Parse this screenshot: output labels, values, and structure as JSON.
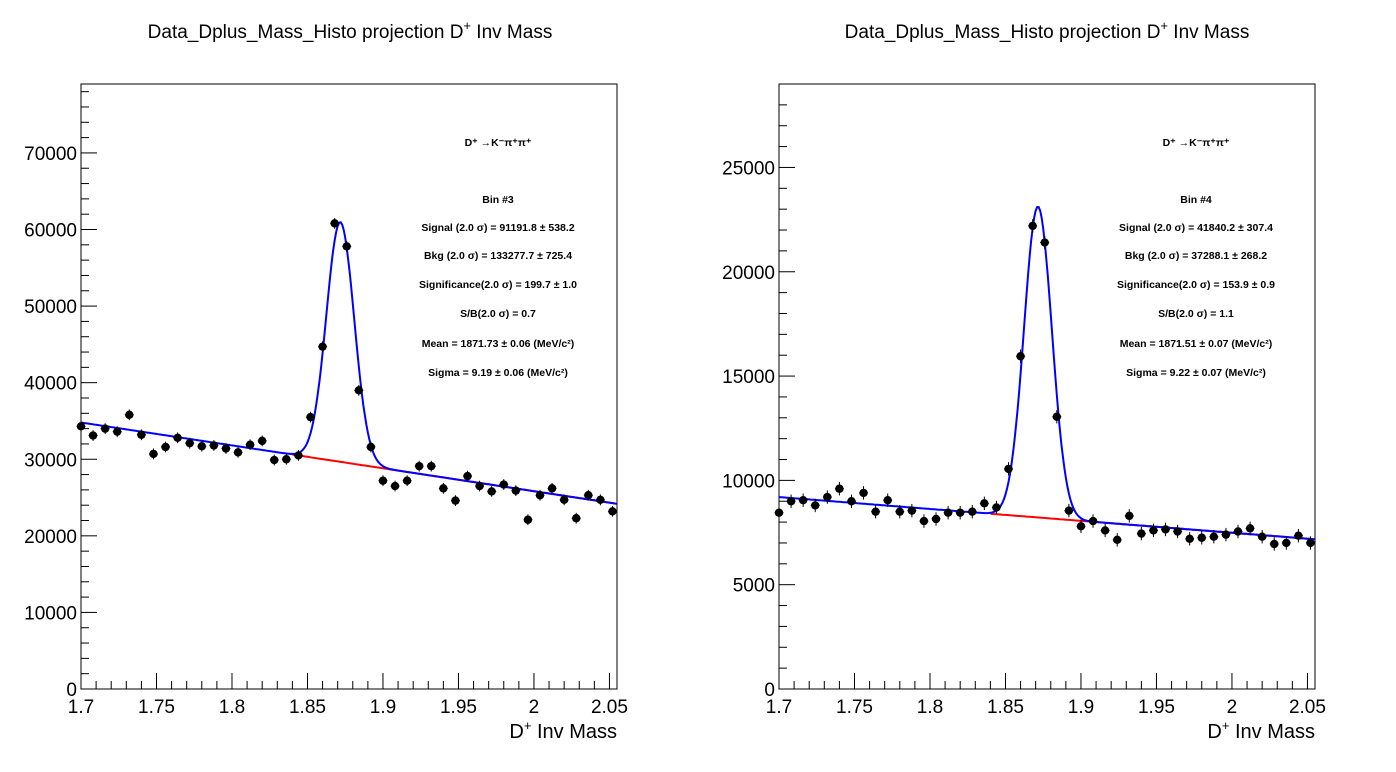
{
  "chart_data": [
    {
      "type": "scatter",
      "title_main": "Data_Dplus_Mass_Histo projection",
      "title_var": "D",
      "title_sup": "+",
      "title_rest": " Inv Mass",
      "xlabel_var": "D",
      "xlabel_sup": "+",
      "xlabel_rest": " Inv Mass",
      "ylabel": "",
      "xlim": [
        1.7,
        2.055
      ],
      "ylim": [
        0,
        79000
      ],
      "xticks": [
        1.7,
        1.75,
        1.8,
        1.85,
        1.9,
        1.95,
        2.0,
        2.05
      ],
      "xtick_labels": [
        "1.7",
        "1.75",
        "1.8",
        "1.85",
        "1.9",
        "1.95",
        "2",
        "2.05"
      ],
      "yticks": [
        0,
        10000,
        20000,
        30000,
        40000,
        50000,
        60000,
        70000
      ],
      "ytick_labels": [
        "0",
        "10000",
        "20000",
        "30000",
        "40000",
        "50000",
        "60000",
        "70000"
      ],
      "decay_label": "D⁺ →K⁻π⁺π⁺",
      "info_lines": [
        "Bin #3",
        "Signal (2.0 σ) =  91191.8 ± 538.2",
        "Bkg (2.0  σ) =  133277.7 ± 725.4",
        "Significance(2.0 σ) =  199.7 ± 1.0",
        "S/B(2.0  σ) =  0.7",
        "Mean = 1871.73 ± 0.06 (MeV/c²)",
        "Sigma = 9.19 ± 0.06 (MeV/c²)"
      ],
      "series": [
        {
          "kind": "data",
          "x": [
            1.7,
            1.708,
            1.716,
            1.724,
            1.732,
            1.74,
            1.748,
            1.756,
            1.764,
            1.772,
            1.78,
            1.788,
            1.796,
            1.804,
            1.812,
            1.82,
            1.828,
            1.836,
            1.844,
            1.852,
            1.86,
            1.868,
            1.876,
            1.884,
            1.892,
            1.9,
            1.908,
            1.916,
            1.924,
            1.932,
            1.94,
            1.948,
            1.956,
            1.964,
            1.972,
            1.98,
            1.988,
            1.996,
            2.004,
            2.012,
            2.02,
            2.028,
            2.036,
            2.044,
            2.052
          ],
          "y": [
            34300,
            33100,
            34000,
            33600,
            35800,
            33200,
            30700,
            31600,
            32800,
            32100,
            31700,
            31800,
            31400,
            30900,
            31900,
            32400,
            29900,
            30000,
            30500,
            35500,
            44700,
            60800,
            57800,
            39000,
            31600,
            27200,
            26500,
            27200,
            29100,
            29100,
            26200,
            24600,
            27800,
            26500,
            25800,
            26700,
            25900,
            22100,
            25300,
            26200,
            24700,
            22300,
            25300,
            24700,
            23200
          ],
          "yerr": 180
        },
        {
          "kind": "background",
          "color": "#ff0000",
          "x_range": [
            1.84,
            2.055
          ],
          "a": 34800,
          "b": 1871.7
        },
        {
          "kind": "total_fit",
          "color": "#0000ff",
          "x_range": [
            1.7,
            2.055
          ],
          "amp": 31300,
          "mean": 1.87173,
          "sigma": 0.00919
        }
      ]
    },
    {
      "type": "scatter",
      "title_main": "Data_Dplus_Mass_Histo projection",
      "title_var": "D",
      "title_sup": "+",
      "title_rest": " Inv Mass",
      "xlabel_var": "D",
      "xlabel_sup": "+",
      "xlabel_rest": " Inv Mass",
      "ylabel": "",
      "xlim": [
        1.7,
        2.055
      ],
      "ylim": [
        0,
        29000
      ],
      "xticks": [
        1.7,
        1.75,
        1.8,
        1.85,
        1.9,
        1.95,
        2.0,
        2.05
      ],
      "xtick_labels": [
        "1.7",
        "1.75",
        "1.8",
        "1.85",
        "1.9",
        "1.95",
        "2",
        "2.05"
      ],
      "yticks": [
        0,
        5000,
        10000,
        15000,
        20000,
        25000
      ],
      "ytick_labels": [
        "0",
        "5000",
        "10000",
        "15000",
        "20000",
        "25000"
      ],
      "decay_label": "D⁺ →K⁻π⁺π⁺",
      "info_lines": [
        "Bin #4",
        "Signal (2.0 σ) =  41840.2 ± 307.4",
        "Bkg (2.0  σ) =  37288.1 ± 268.2",
        "Significance(2.0 σ) =  153.9 ± 0.9",
        "S/B(2.0  σ) =  1.1",
        "Mean = 1871.51 ± 0.07 (MeV/c²)",
        "Sigma = 9.22 ± 0.07 (MeV/c²)"
      ],
      "series": [
        {
          "kind": "data",
          "x": [
            1.7,
            1.708,
            1.716,
            1.724,
            1.732,
            1.74,
            1.748,
            1.756,
            1.764,
            1.772,
            1.78,
            1.788,
            1.796,
            1.804,
            1.812,
            1.82,
            1.828,
            1.836,
            1.844,
            1.852,
            1.86,
            1.868,
            1.876,
            1.884,
            1.892,
            1.9,
            1.908,
            1.916,
            1.924,
            1.932,
            1.94,
            1.948,
            1.956,
            1.964,
            1.972,
            1.98,
            1.988,
            1.996,
            2.004,
            2.012,
            2.02,
            2.028,
            2.036,
            2.044,
            2.052
          ],
          "y": [
            8450,
            9000,
            9050,
            8800,
            9200,
            9600,
            9000,
            9400,
            8500,
            9050,
            8500,
            8550,
            8050,
            8150,
            8450,
            8450,
            8500,
            8900,
            8700,
            10550,
            15950,
            22200,
            21400,
            13050,
            8550,
            7800,
            8050,
            7600,
            7150,
            8300,
            7450,
            7600,
            7650,
            7550,
            7200,
            7250,
            7300,
            7400,
            7550,
            7700,
            7300,
            6950,
            7000,
            7350,
            7000
          ],
          "yerr": 130
        },
        {
          "kind": "background",
          "color": "#ff0000",
          "x_range": [
            1.84,
            2.055
          ],
          "a": 9200,
          "b": 1971.7
        },
        {
          "kind": "total_fit",
          "color": "#0000ff",
          "x_range": [
            1.7,
            2.055
          ],
          "amp": 14900,
          "mean": 1.87151,
          "sigma": 0.00922
        }
      ]
    }
  ],
  "colors": {
    "background_fit": "#ff0000",
    "total_fit": "#0000ff",
    "markers": "#000000"
  }
}
